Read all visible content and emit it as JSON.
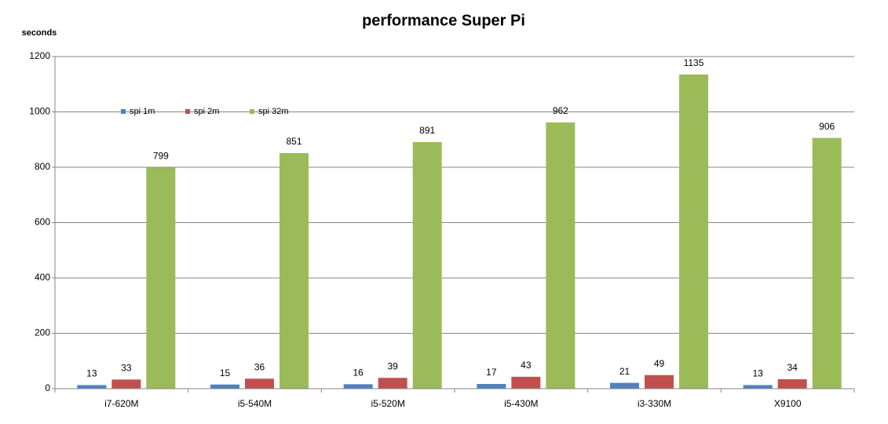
{
  "chart_data": {
    "type": "bar",
    "title": "performance Super Pi",
    "y_label": "seconds",
    "categories": [
      "i7-620M",
      "i5-540M",
      "i5-520M",
      "i5-430M",
      "i3-330M",
      "X9100"
    ],
    "series": [
      {
        "name": "spi 1m",
        "color": "#4f81bd",
        "values": [
          13,
          15,
          16,
          17,
          21,
          13
        ]
      },
      {
        "name": "spi 2m",
        "color": "#c0504d",
        "values": [
          33,
          36,
          39,
          43,
          49,
          34
        ]
      },
      {
        "name": "spi 32m",
        "color": "#9bbb59",
        "values": [
          799,
          851,
          891,
          962,
          1135,
          906
        ]
      }
    ],
    "ylim": [
      0,
      1200
    ],
    "yticks": [
      0,
      200,
      400,
      600,
      800,
      1000,
      1200
    ],
    "grid": true,
    "legend": "top-left"
  }
}
